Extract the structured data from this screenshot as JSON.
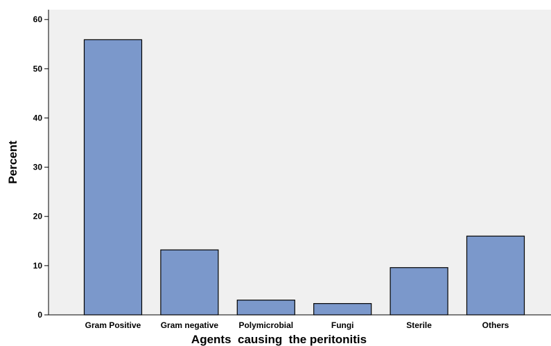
{
  "chart_data": {
    "type": "bar",
    "categories": [
      "Gram Positive",
      "Gram negative",
      "Polymicrobial",
      "Fungi",
      "Sterile",
      "Others"
    ],
    "values": [
      55.9,
      13.2,
      3.0,
      2.3,
      9.6,
      16.0
    ],
    "title": "",
    "xlabel": "Agents  causing  the peritonitis",
    "ylabel": "Percent",
    "ylim": [
      0,
      62
    ],
    "yticks": [
      0,
      10,
      20,
      30,
      40,
      50,
      60
    ],
    "ytick_labels": [
      "0",
      "10",
      "20",
      "30",
      "40",
      "50",
      "60"
    ],
    "grid": false,
    "bar_color": "#7b98cb",
    "plot_background": "#f0f0f0",
    "bar_outline_color": "#000000"
  }
}
